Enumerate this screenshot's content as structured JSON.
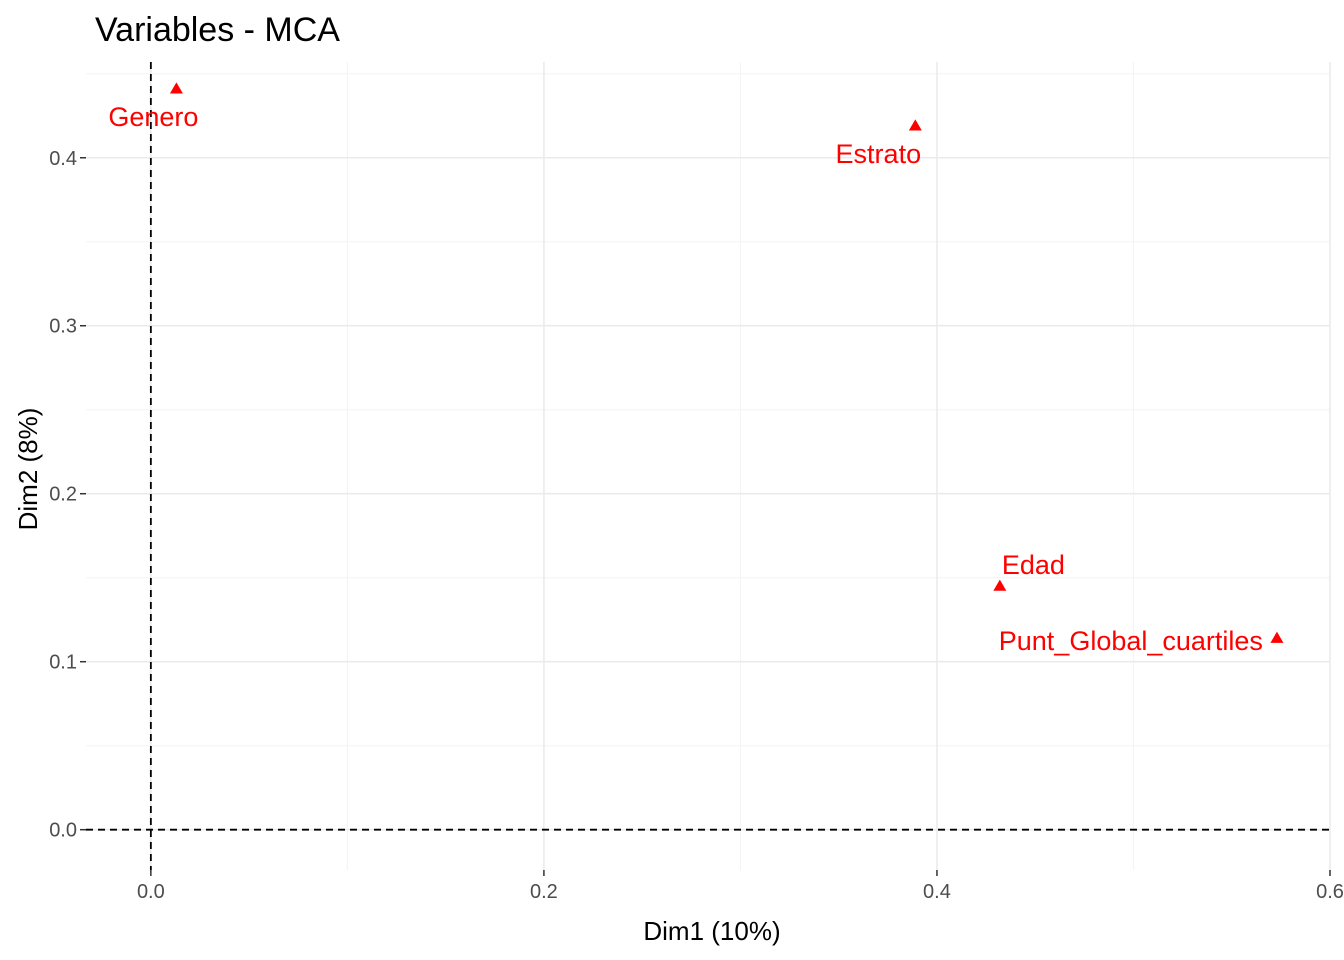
{
  "chart_data": {
    "type": "scatter",
    "title": "Variables - MCA",
    "xlabel": "Dim1 (10%)",
    "ylabel": "Dim2 (8%)",
    "xlim": [
      -0.033,
      0.6
    ],
    "ylim": [
      -0.024,
      0.457
    ],
    "xticks": [
      0.0,
      0.2,
      0.4,
      0.6
    ],
    "xtick_labels": [
      "0.0",
      "0.2",
      "0.4",
      "0.6"
    ],
    "yticks": [
      0.0,
      0.1,
      0.2,
      0.3,
      0.4
    ],
    "ytick_labels": [
      "0.0",
      "0.1",
      "0.2",
      "0.3",
      "0.4"
    ],
    "reference_lines": {
      "x": 0,
      "y": 0,
      "style": "dashed"
    },
    "grid": true,
    "marker": "triangle",
    "color": "#ff0000",
    "points": [
      {
        "label": "Genero",
        "x": 0.013,
        "y": 0.441
      },
      {
        "label": "Estrato",
        "x": 0.389,
        "y": 0.419
      },
      {
        "label": "Edad",
        "x": 0.432,
        "y": 0.145
      },
      {
        "label": "Punt_Global_cuartiles",
        "x": 0.573,
        "y": 0.114
      }
    ]
  }
}
